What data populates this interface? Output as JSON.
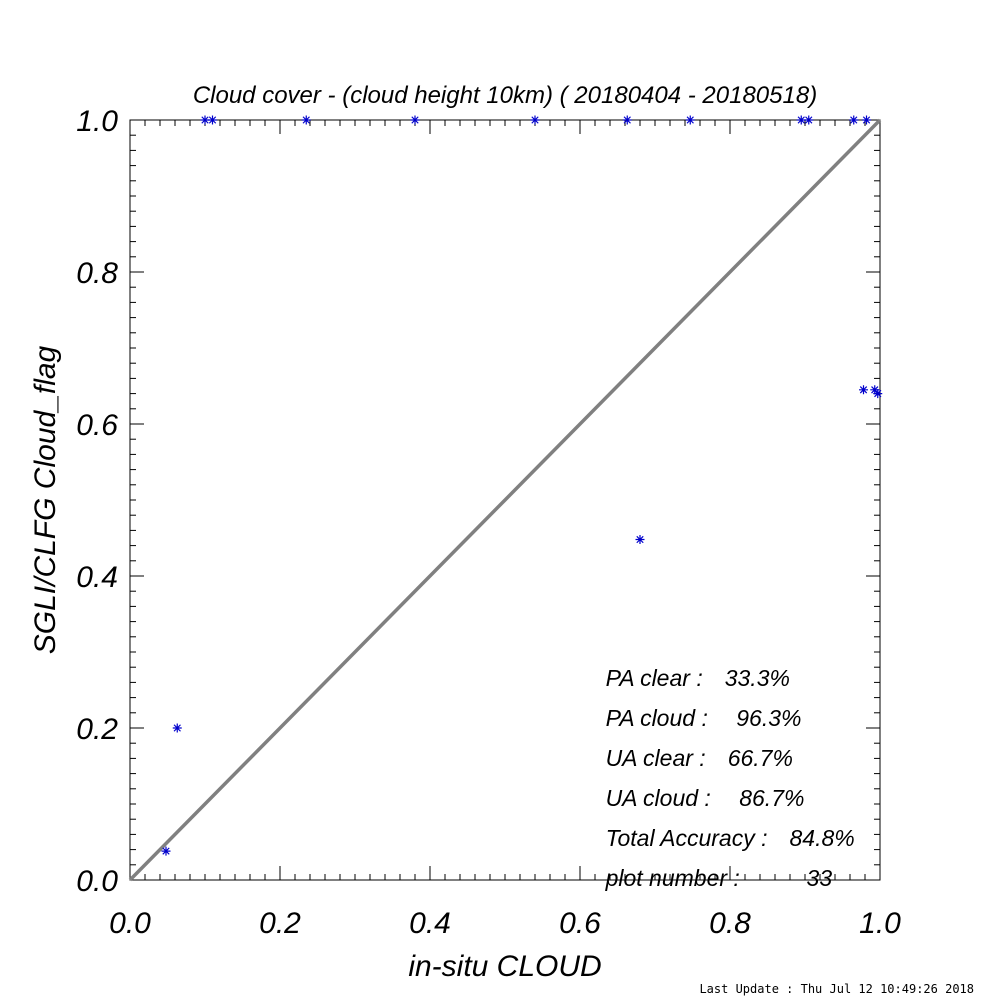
{
  "chart_data": {
    "type": "scatter",
    "title": "Cloud cover - (cloud height 10km) ( 20180404 - 20180518)",
    "xlabel": "in-situ CLOUD",
    "ylabel": "SGLI/CLFG Cloud_flag",
    "xlim": [
      0.0,
      1.0
    ],
    "ylim": [
      0.0,
      1.0
    ],
    "xticks": [
      "0.0",
      "0.2",
      "0.4",
      "0.6",
      "0.8",
      "1.0"
    ],
    "yticks": [
      "0.0",
      "0.2",
      "0.4",
      "0.6",
      "0.8",
      "1.0"
    ],
    "grid": false,
    "reference_line": {
      "from": [
        0,
        0
      ],
      "to": [
        1,
        1
      ],
      "color": "#808080"
    },
    "marker_color": "#0000cc",
    "series": [
      {
        "points": [
          {
            "x": 0.048,
            "y": 0.038
          },
          {
            "x": 0.063,
            "y": 0.2
          },
          {
            "x": 0.1,
            "y": 1.0
          },
          {
            "x": 0.11,
            "y": 1.0
          },
          {
            "x": 0.235,
            "y": 1.0
          },
          {
            "x": 0.38,
            "y": 1.0
          },
          {
            "x": 0.54,
            "y": 1.0
          },
          {
            "x": 0.663,
            "y": 1.0
          },
          {
            "x": 0.68,
            "y": 0.448
          },
          {
            "x": 0.747,
            "y": 1.0
          },
          {
            "x": 0.895,
            "y": 1.0
          },
          {
            "x": 0.905,
            "y": 1.0
          },
          {
            "x": 0.965,
            "y": 1.0
          },
          {
            "x": 0.982,
            "y": 1.0
          },
          {
            "x": 0.978,
            "y": 0.645
          },
          {
            "x": 0.993,
            "y": 0.645
          },
          {
            "x": 0.997,
            "y": 0.64
          }
        ]
      }
    ]
  },
  "stats": [
    {
      "label": "PA clear :",
      "value": "33.3%"
    },
    {
      "label": "PA cloud :",
      "value": " 96.3%"
    },
    {
      "label": "UA clear :",
      "value": "66.7%"
    },
    {
      "label": "UA cloud :",
      "value": " 86.7%"
    },
    {
      "label": "Total Accuracy :",
      "value": "84.8%"
    },
    {
      "label": "plot number :",
      "value": "       33"
    }
  ],
  "footer": "Last Update : Thu Jul 12 10:49:26 2018"
}
